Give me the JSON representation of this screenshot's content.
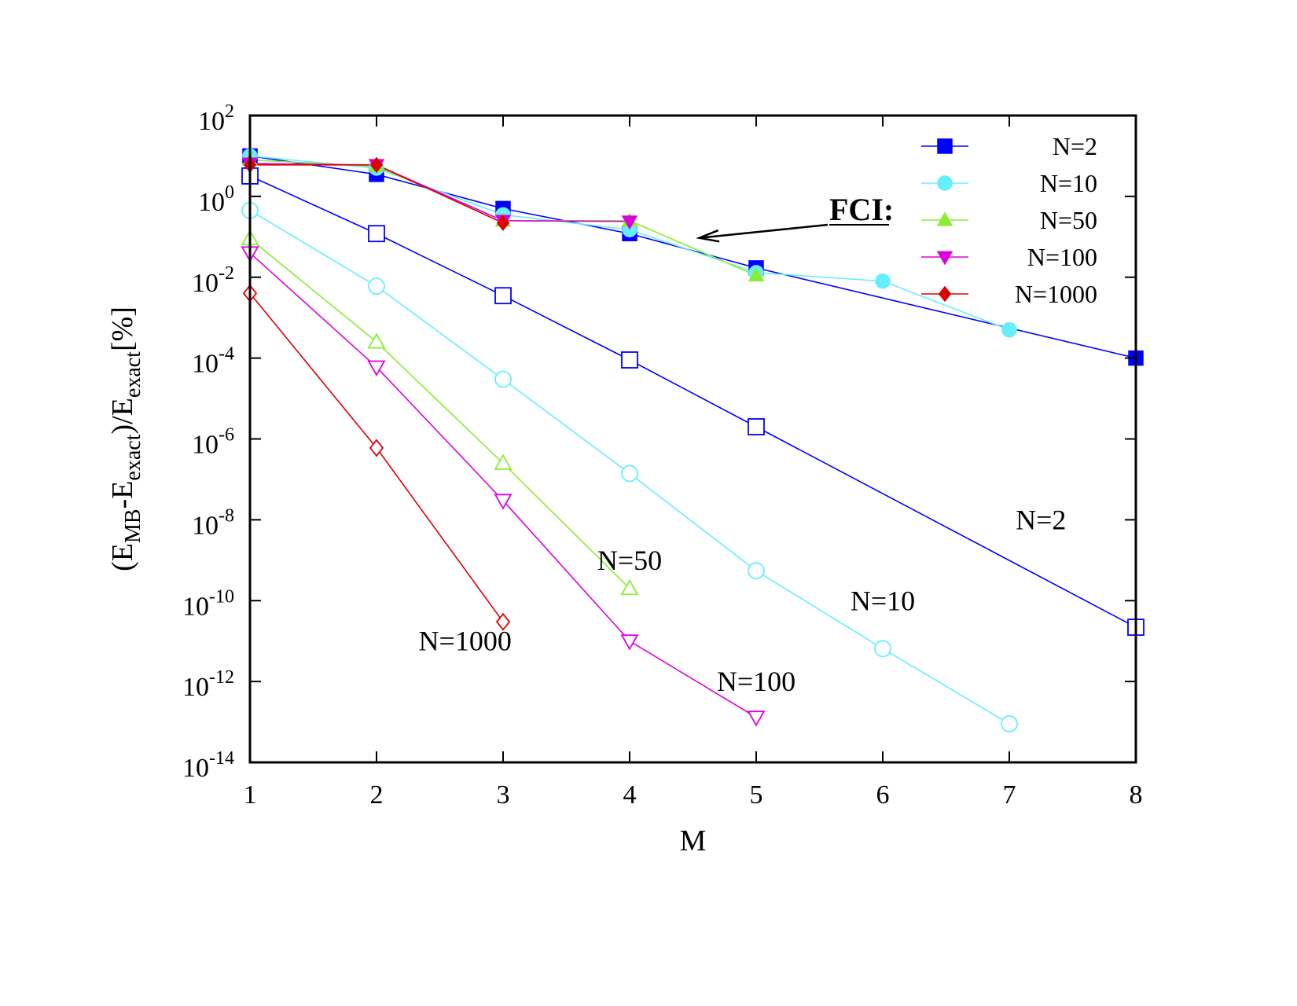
{
  "chart_data": {
    "type": "line",
    "xlabel": "M",
    "ylabel_parts": {
      "open": "(E",
      "sub1": "MB",
      "mid": "-E",
      "sub2": "exact",
      "close": ")/E",
      "sub3": "exact",
      "tail": "[%]"
    },
    "xlim": [
      1,
      8
    ],
    "ylim": [
      1e-14,
      100
    ],
    "yscale": "log",
    "x_ticks": [
      "1",
      "2",
      "3",
      "4",
      "5",
      "6",
      "7",
      "8"
    ],
    "y_ticks": [
      {
        "base": "10",
        "exp": "2",
        "value": 100
      },
      {
        "base": "10",
        "exp": "0",
        "value": 1
      },
      {
        "base": "10",
        "exp": "-2",
        "value": 0.01
      },
      {
        "base": "10",
        "exp": "-4",
        "value": 0.0001
      },
      {
        "base": "10",
        "exp": "-6",
        "value": 1e-06
      },
      {
        "base": "10",
        "exp": "-8",
        "value": 1e-08
      },
      {
        "base": "10",
        "exp": "-10",
        "value": 1e-10
      },
      {
        "base": "10",
        "exp": "-12",
        "value": 1e-12
      },
      {
        "base": "10",
        "exp": "-14",
        "value": 1e-14
      }
    ],
    "grid": false,
    "legend_position": "top-right",
    "annotation": {
      "text": "FCI:",
      "from": [
        5.8,
        0.4
      ],
      "to": [
        4.55,
        0.06
      ]
    },
    "series": [
      {
        "name": "N=2",
        "group": "FCI",
        "marker": "square",
        "filled": true,
        "color": "#0000ff",
        "points": [
          [
            1,
            10
          ],
          [
            2,
            3.5
          ],
          [
            3,
            0.5
          ],
          [
            4,
            0.12
          ],
          [
            5,
            0.017
          ],
          [
            8,
            0.0001
          ]
        ]
      },
      {
        "name": "N=10",
        "group": "FCI",
        "marker": "circle",
        "filled": true,
        "color": "#66eeff",
        "points": [
          [
            1,
            10
          ],
          [
            2,
            5
          ],
          [
            3,
            0.35
          ],
          [
            4,
            0.15
          ],
          [
            5,
            0.013
          ],
          [
            6,
            0.008
          ],
          [
            7,
            0.0005
          ]
        ]
      },
      {
        "name": "N=50",
        "group": "FCI",
        "marker": "triangle-up",
        "filled": true,
        "color": "#88ee33",
        "points": [
          [
            1,
            8
          ],
          [
            2,
            5.5
          ],
          [
            3,
            0.25
          ],
          [
            4,
            0.25
          ],
          [
            5,
            0.011
          ]
        ]
      },
      {
        "name": "N=100",
        "group": "FCI",
        "marker": "triangle-down",
        "filled": true,
        "color": "#dd00dd",
        "points": [
          [
            1,
            6.5
          ],
          [
            2,
            6
          ],
          [
            3,
            0.25
          ],
          [
            4,
            0.24
          ]
        ]
      },
      {
        "name": "N=1000",
        "group": "FCI",
        "marker": "diamond",
        "filled": true,
        "color": "#dd0000",
        "points": [
          [
            1,
            6
          ],
          [
            2,
            6
          ],
          [
            3,
            0.22
          ]
        ]
      },
      {
        "name": "N=2",
        "group": "open",
        "marker": "square",
        "filled": false,
        "color": "#0000ff",
        "points": [
          [
            1,
            3.2
          ],
          [
            2,
            0.12
          ],
          [
            3,
            0.0035
          ],
          [
            4,
            9e-05
          ],
          [
            5,
            2e-06
          ],
          [
            8,
            2.2e-11
          ]
        ]
      },
      {
        "name": "N=10",
        "group": "open",
        "marker": "circle",
        "filled": false,
        "color": "#66eeff",
        "points": [
          [
            1,
            0.45
          ],
          [
            2,
            0.006
          ],
          [
            3,
            3e-05
          ],
          [
            4,
            1.4e-07
          ],
          [
            5,
            5.5e-10
          ],
          [
            6,
            6.5e-12
          ],
          [
            7,
            9e-14
          ]
        ]
      },
      {
        "name": "N=50",
        "group": "open",
        "marker": "triangle-up",
        "filled": false,
        "color": "#88ee33",
        "points": [
          [
            1,
            0.09
          ],
          [
            2,
            0.00025
          ],
          [
            3,
            2.5e-07
          ],
          [
            4,
            2e-10
          ]
        ]
      },
      {
        "name": "N=100",
        "group": "open",
        "marker": "triangle-down",
        "filled": false,
        "color": "#dd00dd",
        "points": [
          [
            1,
            0.04
          ],
          [
            2,
            6e-05
          ],
          [
            3,
            3e-08
          ],
          [
            4,
            1e-11
          ],
          [
            5,
            1.3e-13
          ]
        ]
      },
      {
        "name": "N=1000",
        "group": "open",
        "marker": "diamond",
        "filled": false,
        "color": "#dd0000",
        "points": [
          [
            1,
            0.004
          ],
          [
            2,
            6e-07
          ],
          [
            3,
            3e-11
          ]
        ]
      }
    ],
    "curve_labels": [
      {
        "text": "N=2",
        "at": [
          7.25,
          1e-08
        ]
      },
      {
        "text": "N=10",
        "at": [
          6.0,
          1e-10
        ]
      },
      {
        "text": "N=50",
        "at": [
          4.0,
          1e-09
        ]
      },
      {
        "text": "N=100",
        "at": [
          5.0,
          1e-12
        ]
      },
      {
        "text": "N=1000",
        "at": [
          2.7,
          1e-11
        ]
      }
    ]
  }
}
